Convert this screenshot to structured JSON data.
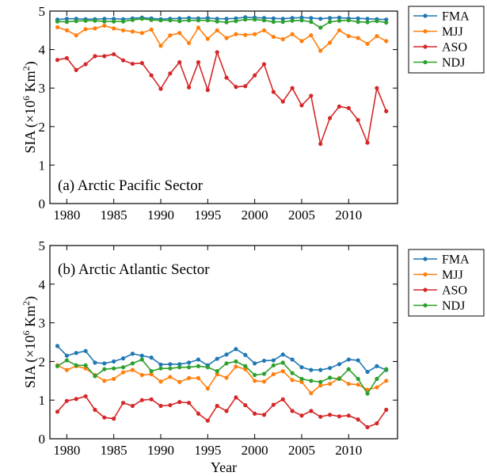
{
  "figure": {
    "xlabel": "Year"
  },
  "chart_data": [
    {
      "type": "line",
      "title": "(a) Arctic Pacific Sector",
      "ylabel_main": "SIA (×10",
      "ylabel_exp1": "6",
      "ylabel_mid": " Km",
      "ylabel_exp2": "2",
      "ylabel_end": ")",
      "xlabel": "",
      "xlim": [
        1978.2,
        2015.2
      ],
      "ylim": [
        0,
        5
      ],
      "xticks": [
        1980,
        1985,
        1990,
        1995,
        2000,
        2005,
        2010
      ],
      "yticks": [
        0,
        1,
        2,
        3,
        4,
        5
      ],
      "legend_position": "outside-right",
      "x": [
        1979,
        1980,
        1981,
        1982,
        1983,
        1984,
        1985,
        1986,
        1987,
        1988,
        1989,
        1990,
        1991,
        1992,
        1993,
        1994,
        1995,
        1996,
        1997,
        1998,
        1999,
        2000,
        2001,
        2002,
        2003,
        2004,
        2005,
        2006,
        2007,
        2008,
        2009,
        2010,
        2011,
        2012,
        2013,
        2014
      ],
      "series": [
        {
          "name": "FMA",
          "color": "#1f77b4",
          "values": [
            4.78,
            4.8,
            4.8,
            4.79,
            4.79,
            4.8,
            4.8,
            4.79,
            4.81,
            4.83,
            4.81,
            4.79,
            4.8,
            4.81,
            4.82,
            4.81,
            4.82,
            4.8,
            4.8,
            4.81,
            4.84,
            4.83,
            4.82,
            4.81,
            4.8,
            4.82,
            4.83,
            4.82,
            4.8,
            4.82,
            4.83,
            4.81,
            4.81,
            4.8,
            4.79,
            4.78
          ]
        },
        {
          "name": "MJJ",
          "color": "#ff7f0e",
          "values": [
            4.58,
            4.5,
            4.37,
            4.53,
            4.55,
            4.62,
            4.55,
            4.5,
            4.47,
            4.43,
            4.52,
            4.1,
            4.37,
            4.43,
            4.17,
            4.57,
            4.28,
            4.5,
            4.3,
            4.4,
            4.38,
            4.4,
            4.5,
            4.33,
            4.27,
            4.4,
            4.22,
            4.37,
            3.97,
            4.18,
            4.5,
            4.35,
            4.3,
            4.15,
            4.35,
            4.22
          ]
        },
        {
          "name": "ASO",
          "color": "#d62728",
          "values": [
            3.73,
            3.78,
            3.47,
            3.62,
            3.83,
            3.83,
            3.88,
            3.72,
            3.63,
            3.65,
            3.33,
            2.98,
            3.38,
            3.67,
            3.02,
            3.67,
            2.95,
            3.93,
            3.27,
            3.03,
            3.05,
            3.33,
            3.62,
            2.9,
            2.65,
            3.0,
            2.55,
            2.8,
            1.55,
            2.22,
            2.52,
            2.48,
            2.17,
            1.58,
            3.0,
            2.4
          ]
        },
        {
          "name": "NDJ",
          "color": "#2ca02c",
          "values": [
            4.73,
            4.72,
            4.74,
            4.75,
            4.75,
            4.73,
            4.73,
            4.73,
            4.77,
            4.8,
            4.77,
            4.76,
            4.76,
            4.74,
            4.76,
            4.76,
            4.76,
            4.73,
            4.71,
            4.74,
            4.78,
            4.78,
            4.76,
            4.72,
            4.72,
            4.75,
            4.76,
            4.72,
            4.57,
            4.72,
            4.75,
            4.76,
            4.72,
            4.71,
            4.74,
            4.7
          ]
        }
      ]
    },
    {
      "type": "line",
      "title": "(b) Arctic Atlantic Sector",
      "ylabel_main": "SIA (×10",
      "ylabel_exp1": "6",
      "ylabel_mid": " Km",
      "ylabel_exp2": "2",
      "ylabel_end": ")",
      "xlabel": "Year",
      "xlim": [
        1978.2,
        2015.2
      ],
      "ylim": [
        0,
        5
      ],
      "xticks": [
        1980,
        1985,
        1990,
        1995,
        2000,
        2005,
        2010
      ],
      "yticks": [
        0,
        1,
        2,
        3,
        4,
        5
      ],
      "legend_position": "outside-right",
      "x": [
        1979,
        1980,
        1981,
        1982,
        1983,
        1984,
        1985,
        1986,
        1987,
        1988,
        1989,
        1990,
        1991,
        1992,
        1993,
        1994,
        1995,
        1996,
        1997,
        1998,
        1999,
        2000,
        2001,
        2002,
        2003,
        2004,
        2005,
        2006,
        2007,
        2008,
        2009,
        2010,
        2011,
        2012,
        2013,
        2014
      ],
      "series": [
        {
          "name": "FMA",
          "color": "#1f77b4",
          "values": [
            2.4,
            2.15,
            2.22,
            2.27,
            1.97,
            1.95,
            2.0,
            2.08,
            2.2,
            2.15,
            2.1,
            1.92,
            1.93,
            1.93,
            1.97,
            2.05,
            1.9,
            2.07,
            2.18,
            2.32,
            2.17,
            1.95,
            2.02,
            2.03,
            2.18,
            2.05,
            1.85,
            1.78,
            1.78,
            1.83,
            1.93,
            2.05,
            2.03,
            1.73,
            1.88,
            1.78
          ]
        },
        {
          "name": "MJJ",
          "color": "#ff7f0e",
          "values": [
            1.9,
            1.78,
            1.88,
            1.82,
            1.65,
            1.5,
            1.55,
            1.72,
            1.78,
            1.65,
            1.67,
            1.48,
            1.6,
            1.47,
            1.57,
            1.57,
            1.3,
            1.67,
            1.58,
            1.87,
            1.8,
            1.5,
            1.48,
            1.67,
            1.75,
            1.52,
            1.47,
            1.18,
            1.38,
            1.42,
            1.57,
            1.42,
            1.4,
            1.27,
            1.33,
            1.5
          ]
        },
        {
          "name": "ASO",
          "color": "#d62728",
          "values": [
            0.7,
            0.98,
            1.03,
            1.1,
            0.75,
            0.55,
            0.52,
            0.93,
            0.85,
            1.0,
            1.02,
            0.85,
            0.87,
            0.95,
            0.93,
            0.65,
            0.47,
            0.85,
            0.72,
            1.07,
            0.87,
            0.65,
            0.62,
            0.88,
            1.02,
            0.72,
            0.6,
            0.72,
            0.57,
            0.62,
            0.58,
            0.6,
            0.5,
            0.3,
            0.4,
            0.75
          ]
        },
        {
          "name": "NDJ",
          "color": "#2ca02c",
          "values": [
            1.88,
            2.03,
            1.9,
            1.9,
            1.62,
            1.8,
            1.82,
            1.85,
            1.95,
            2.05,
            1.75,
            1.82,
            1.82,
            1.85,
            1.85,
            1.88,
            1.85,
            1.75,
            1.95,
            2.0,
            1.88,
            1.65,
            1.68,
            1.9,
            1.97,
            1.7,
            1.55,
            1.5,
            1.47,
            1.58,
            1.55,
            1.8,
            1.55,
            1.17,
            1.55,
            1.8
          ]
        }
      ]
    }
  ]
}
